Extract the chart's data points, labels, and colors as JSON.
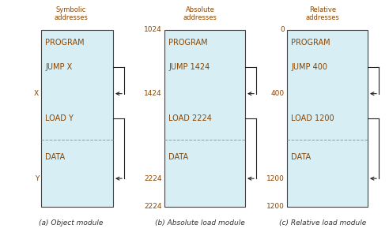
{
  "bg_color": "#ffffff",
  "box_fill": "#d6eef4",
  "box_edge": "#444444",
  "text_color": "#8B4500",
  "arrow_color": "#222222",
  "dashed_color": "#999999",
  "title_color": "#8B4500",
  "caption_color": "#333333",
  "modules": [
    {
      "title": "Symbolic\naddresses",
      "caption": "(a) Object module",
      "top_label": "",
      "bottom_label": "",
      "lines": [
        {
          "text": "PROGRAM",
          "yf": 0.93
        },
        {
          "text": "JUMP X",
          "yf": 0.79
        },
        {
          "text": "LOAD Y",
          "yf": 0.5
        },
        {
          "text": "DATA",
          "yf": 0.28
        }
      ],
      "dashed_yf": 0.38,
      "side_labels": [
        {
          "text": "X",
          "yf": 0.64,
          "is_addr": false
        },
        {
          "text": "Y",
          "yf": 0.16,
          "is_addr": false
        }
      ],
      "arrows": [
        {
          "from_yf": 0.79,
          "to_yf": 0.64
        },
        {
          "from_yf": 0.5,
          "to_yf": 0.16
        }
      ]
    },
    {
      "title": "Absolute\naddresses",
      "caption": "(b) Absolute load module",
      "top_label": "1024",
      "bottom_label": "2224",
      "lines": [
        {
          "text": "PROGRAM",
          "yf": 0.93
        },
        {
          "text": "JUMP 1424",
          "yf": 0.79
        },
        {
          "text": "LOAD 2224",
          "yf": 0.5
        },
        {
          "text": "DATA",
          "yf": 0.28
        }
      ],
      "dashed_yf": 0.38,
      "side_labels": [
        {
          "text": "1424",
          "yf": 0.64,
          "is_addr": true
        },
        {
          "text": "2224",
          "yf": 0.16,
          "is_addr": true
        }
      ],
      "arrows": [
        {
          "from_yf": 0.79,
          "to_yf": 0.64
        },
        {
          "from_yf": 0.5,
          "to_yf": 0.16
        }
      ]
    },
    {
      "title": "Relative\naddresses",
      "caption": "(c) Relative load module",
      "top_label": "0",
      "bottom_label": "1200",
      "lines": [
        {
          "text": "PROGRAM",
          "yf": 0.93
        },
        {
          "text": "JUMP 400",
          "yf": 0.79
        },
        {
          "text": "LOAD 1200",
          "yf": 0.5
        },
        {
          "text": "DATA",
          "yf": 0.28
        }
      ],
      "dashed_yf": 0.38,
      "side_labels": [
        {
          "text": "400",
          "yf": 0.64,
          "is_addr": true
        },
        {
          "text": "1200",
          "yf": 0.16,
          "is_addr": true
        }
      ],
      "arrows": [
        {
          "from_yf": 0.79,
          "to_yf": 0.64
        },
        {
          "from_yf": 0.5,
          "to_yf": 0.16
        }
      ]
    }
  ]
}
